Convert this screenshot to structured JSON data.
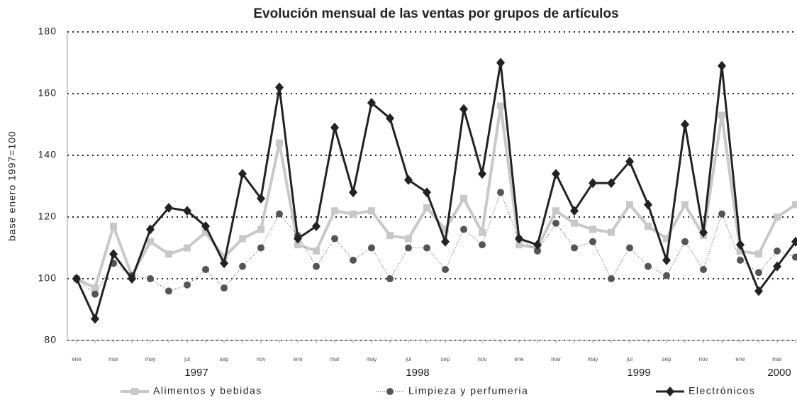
{
  "chart_data": {
    "type": "line",
    "title": "Evolución mensual de las ventas por grupos de artículos",
    "y_label": "base enero 1997=100",
    "categories": [
      "ene",
      null,
      "mar",
      null,
      "may",
      null,
      "jul",
      null,
      "sep",
      null,
      "nov",
      null,
      "ene",
      null,
      "mar",
      null,
      "may",
      null,
      "jul",
      null,
      "sep",
      null,
      "nov",
      null,
      "ene",
      null,
      "mar",
      null,
      "may",
      null,
      "jul",
      null,
      "sep",
      null,
      "nov",
      null,
      "ene",
      null,
      "mar",
      null
    ],
    "years": [
      "1997",
      "1998",
      "1999",
      "2000"
    ],
    "ylim": [
      80,
      180
    ],
    "yticks": [
      80,
      100,
      120,
      140,
      160,
      180
    ],
    "grid": true,
    "series": [
      {
        "name": "Alimentos y bebidas",
        "color": "#c8c8c8",
        "marker": "square",
        "values": [
          100,
          97,
          117,
          101,
          112,
          108,
          110,
          115,
          107,
          113,
          116,
          144,
          111,
          109,
          122,
          121,
          122,
          114,
          113,
          123,
          116,
          126,
          115,
          156,
          111,
          110,
          122,
          118,
          116,
          115,
          124,
          117,
          113,
          124,
          114,
          153,
          109,
          108,
          120,
          124
        ]
      },
      {
        "name": "Limpieza y perfumeria",
        "color": "#555555",
        "marker": "circle",
        "values": [
          100,
          95,
          105,
          101,
          100,
          96,
          98,
          103,
          97,
          104,
          110,
          121,
          114,
          104,
          113,
          106,
          110,
          100,
          110,
          110,
          103,
          116,
          111,
          128,
          113,
          109,
          118,
          110,
          112,
          100,
          110,
          104,
          101,
          112,
          103,
          121,
          106,
          102,
          109,
          107
        ]
      },
      {
        "name": "Electrónicos",
        "color": "#222222",
        "marker": "diamond",
        "values": [
          100,
          87,
          108,
          100,
          116,
          123,
          122,
          117,
          105,
          134,
          126,
          162,
          113,
          117,
          149,
          128,
          157,
          152,
          132,
          128,
          112,
          155,
          134,
          170,
          113,
          111,
          134,
          122,
          131,
          131,
          138,
          124,
          106,
          150,
          115,
          169,
          111,
          96,
          104,
          112
        ]
      }
    ]
  }
}
